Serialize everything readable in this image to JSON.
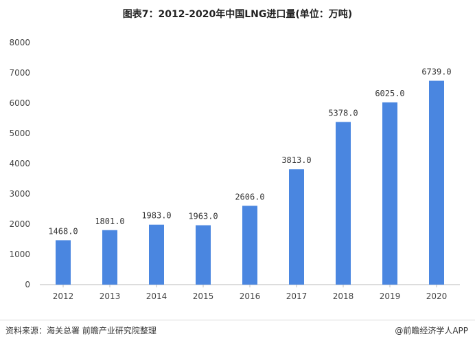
{
  "header": {
    "title": "图表7：2012-2020年中国LNG进口量(单位：万吨)"
  },
  "footer": {
    "source": "资料来源：海关总署 前瞻产业研究院整理",
    "credit": "@前瞻经济学人APP"
  },
  "colors": {
    "bar": "#4a86e0",
    "axis": "#bbbbbb",
    "text": "#444444"
  },
  "chart_data": {
    "type": "bar",
    "categories": [
      "2012",
      "2013",
      "2014",
      "2015",
      "2016",
      "2017",
      "2018",
      "2019",
      "2020"
    ],
    "values": [
      1468.0,
      1801.0,
      1983.0,
      1963.0,
      2606.0,
      3813.0,
      5378.0,
      6025.0,
      6739.0
    ],
    "value_labels": [
      "1468.0",
      "1801.0",
      "1983.0",
      "1963.0",
      "2606.0",
      "3813.0",
      "5378.0",
      "6025.0",
      "6739.0"
    ],
    "title": "图表7：2012-2020年中国LNG进口量(单位：万吨)",
    "xlabel": "",
    "ylabel": "",
    "ylim": [
      0,
      8000
    ],
    "yticks": [
      0,
      1000,
      2000,
      3000,
      4000,
      5000,
      6000,
      7000,
      8000
    ],
    "grid": false
  }
}
